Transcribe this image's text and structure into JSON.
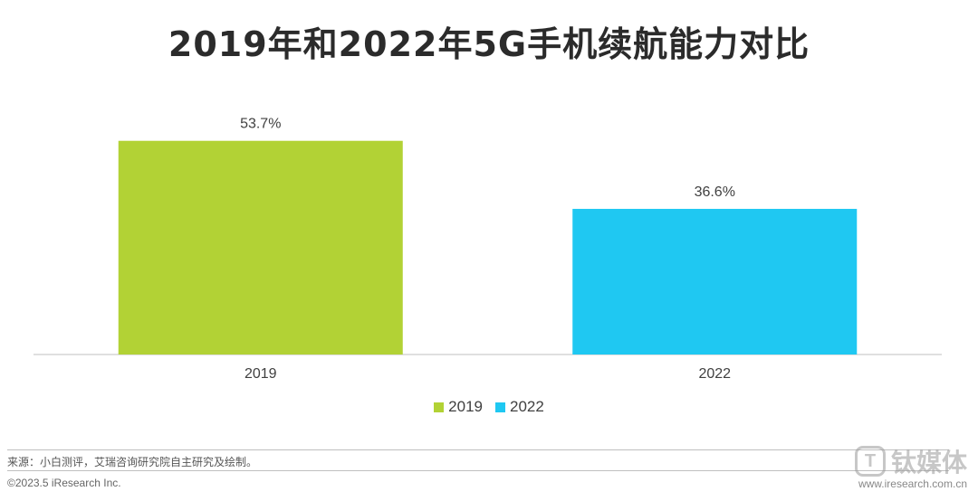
{
  "chart_data": {
    "type": "bar",
    "title": "2019年和2022年5G手机续航能力对比",
    "categories": [
      "2019",
      "2022"
    ],
    "series": [
      {
        "name": "2019",
        "values": [
          53.7,
          null
        ],
        "labels": [
          "53.7%",
          ""
        ],
        "color": "#b2d235"
      },
      {
        "name": "2022",
        "values": [
          null,
          36.6
        ],
        "labels": [
          "",
          "36.6%"
        ],
        "color": "#1fc8f2"
      }
    ],
    "ylim": [
      0,
      60
    ],
    "grid": false,
    "legend_position": "bottom"
  },
  "legend": {
    "items": [
      {
        "label": "2019",
        "color": "#b2d235"
      },
      {
        "label": "2022",
        "color": "#1fc8f2"
      }
    ]
  },
  "footer": {
    "source": "来源：小白测评，艾瑞咨询研究院自主研究及绘制。",
    "copyright": "©2023.5 iResearch Inc.",
    "watermark_text": "钛媒体",
    "watermark_url": "www.iresearch.com.cn"
  }
}
